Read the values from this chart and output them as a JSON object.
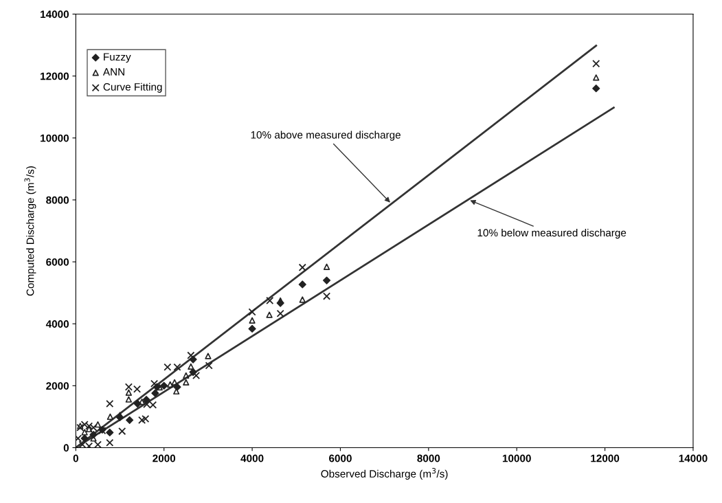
{
  "chart_data": {
    "type": "scatter",
    "xlabel": "Observed Discharge (m$^{3}$/s)",
    "ylabel": "Computed Discharge (m$^{3}$/s)",
    "xlim": [
      0,
      14000
    ],
    "ylim": [
      0,
      14000
    ],
    "xticks": [
      0,
      2000,
      4000,
      6000,
      8000,
      10000,
      12000,
      14000
    ],
    "yticks": [
      0,
      2000,
      4000,
      6000,
      8000,
      10000,
      12000,
      14000
    ],
    "grid": false,
    "legend": "top left",
    "series": [
      {
        "name": "Fuzzy",
        "marker": "diamond",
        "color": "#222222",
        "x": [
          11800,
          4000,
          4640,
          5140,
          5690,
          2660,
          2660,
          1840,
          2300,
          1220,
          770,
          200,
          400,
          600,
          1000,
          1400,
          1600,
          1800,
          2000
        ],
        "values": [
          11600,
          3840,
          4670,
          5270,
          5400,
          2850,
          2440,
          1960,
          1960,
          890,
          490,
          300,
          420,
          580,
          980,
          1420,
          1550,
          1760,
          2000
        ]
      },
      {
        "name": "ANN",
        "marker": "triangle",
        "color": "#222222",
        "x": [
          11800,
          4000,
          4390,
          4640,
          5140,
          5690,
          3000,
          2610,
          2500,
          2500,
          2280,
          2140,
          2240,
          1200,
          1200,
          780,
          1000,
          1500,
          1900,
          300,
          100,
          200,
          400,
          500
        ],
        "values": [
          11950,
          4110,
          4290,
          4750,
          4780,
          5840,
          2960,
          2620,
          2330,
          2110,
          1820,
          2040,
          2110,
          1780,
          1560,
          1000,
          1050,
          1480,
          1950,
          600,
          700,
          500,
          300,
          750
        ]
      },
      {
        "name": "Curve Fitting",
        "marker": "cross",
        "color": "#222222",
        "x": [
          11800,
          4000,
          4400,
          4640,
          5140,
          5690,
          2610,
          3020,
          2080,
          2300,
          2730,
          1780,
          1200,
          1390,
          770,
          1610,
          1750,
          1500,
          1580,
          1050,
          770,
          100,
          200,
          300,
          400,
          50,
          150,
          300,
          500,
          600
        ],
        "values": [
          12400,
          4380,
          4750,
          4330,
          5820,
          4890,
          2980,
          2650,
          2600,
          2600,
          2330,
          2070,
          1960,
          1890,
          1420,
          1400,
          1380,
          890,
          930,
          530,
          160,
          650,
          750,
          700,
          650,
          300,
          100,
          50,
          100,
          550
        ]
      },
      {
        "type": "line",
        "color": "#333333",
        "marker": "none",
        "line_style": "solid",
        "x": [
          0,
          11800
        ],
        "values": [
          0,
          12980
        ]
      },
      {
        "type": "line",
        "color": "#333333",
        "marker": "none",
        "line_style": "solid",
        "x": [
          0,
          12200
        ],
        "values": [
          0,
          10980
        ]
      }
    ],
    "annotations": [
      {
        "text": "10% above measured discharge",
        "x": 7160,
        "y": 7870
      },
      {
        "text": "10% below measured discharge",
        "x": 8900,
        "y": 8010
      }
    ]
  }
}
